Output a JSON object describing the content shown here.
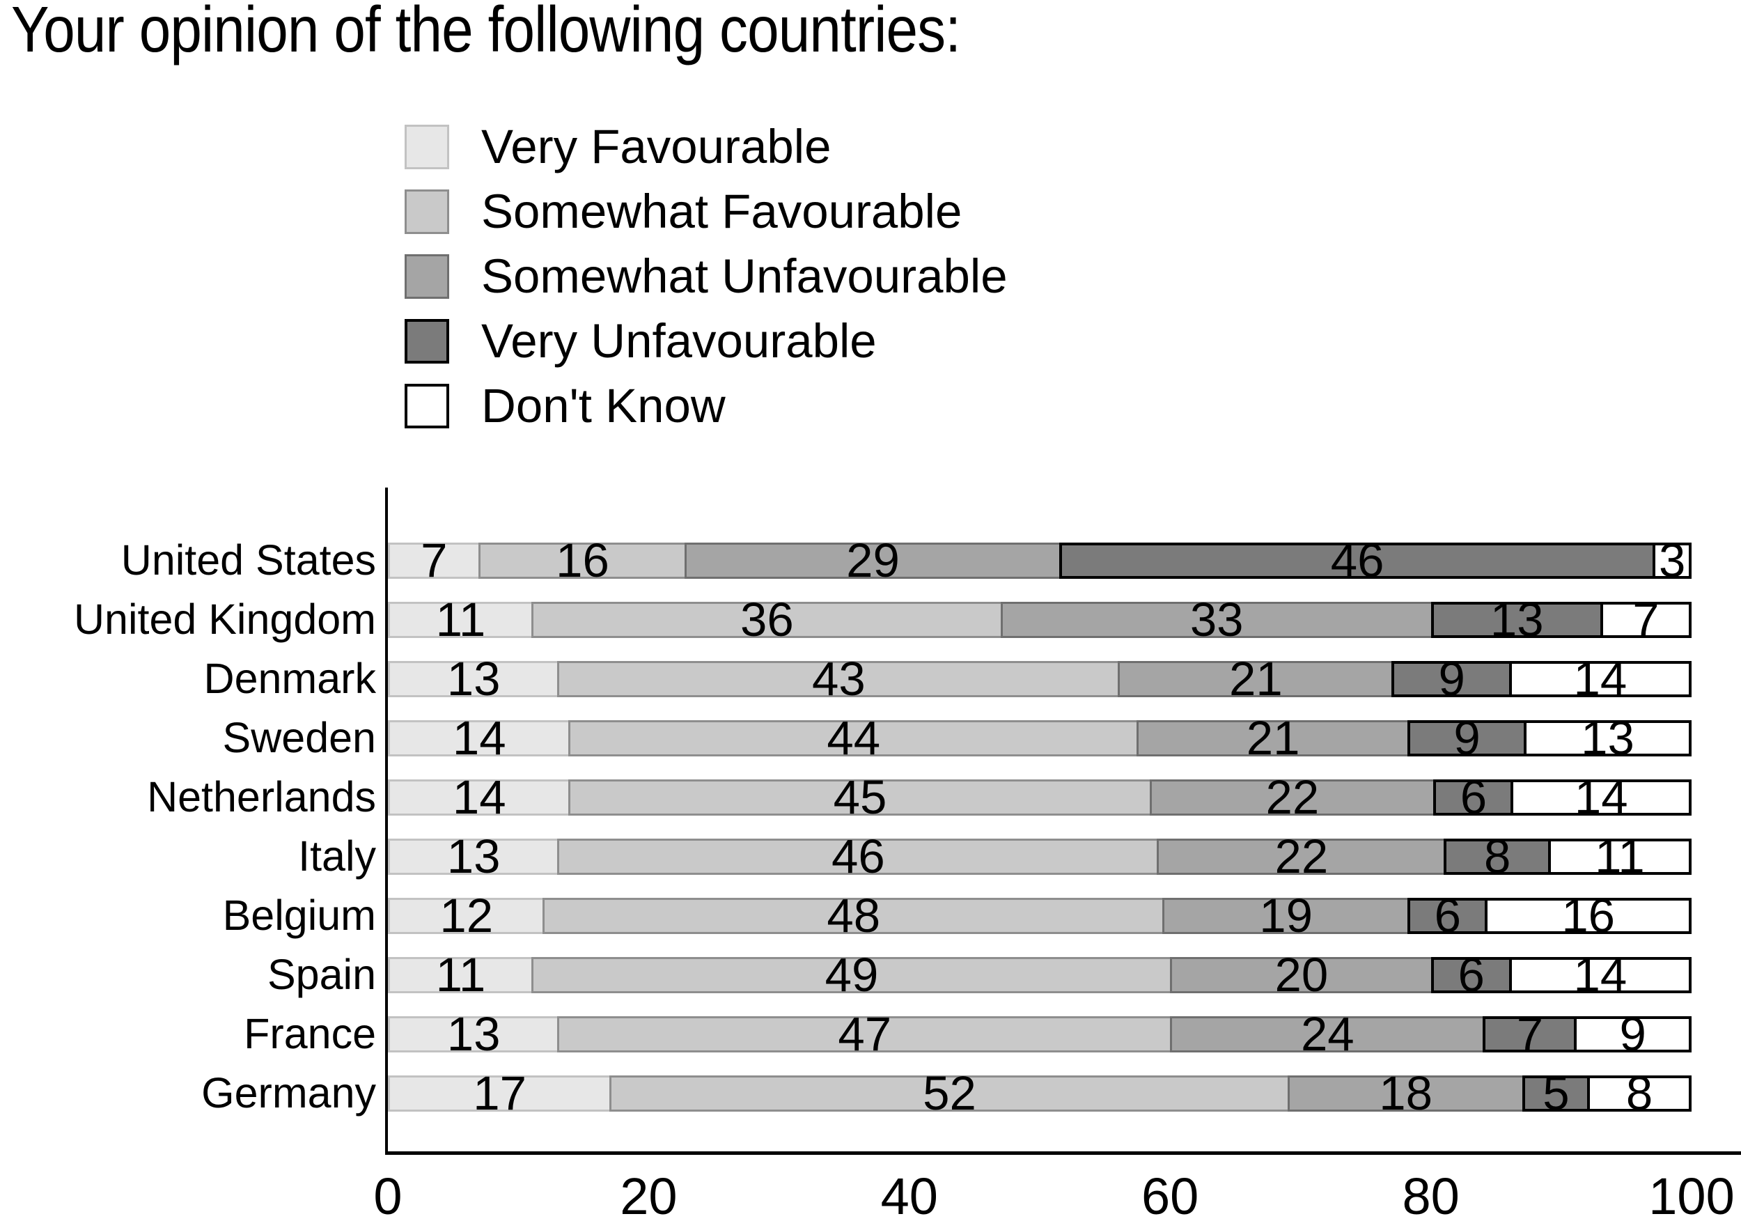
{
  "title": "Your opinion of the following countries:",
  "chart_data": {
    "type": "bar",
    "stacked": true,
    "orientation": "horizontal",
    "title": "Your opinion of the following countries:",
    "categories": [
      "United States",
      "United Kingdom",
      "Denmark",
      "Sweden",
      "Netherlands",
      "Italy",
      "Belgium",
      "Spain",
      "France",
      "Germany"
    ],
    "series": [
      {
        "name": "Very Favourable",
        "color": "#e7e7e7",
        "border_color": "#c2c2c2",
        "border_px": 3,
        "values": [
          7,
          11,
          13,
          14,
          14,
          13,
          12,
          11,
          13,
          17
        ]
      },
      {
        "name": "Somewhat Favourable",
        "color": "#c9c9c9",
        "border_color": "#8e8e8e",
        "border_px": 3,
        "values": [
          16,
          36,
          43,
          44,
          45,
          46,
          48,
          49,
          47,
          52
        ]
      },
      {
        "name": "Somewhat Unfavourable",
        "color": "#a5a5a5",
        "border_color": "#6f6f6f",
        "border_px": 3,
        "values": [
          29,
          33,
          21,
          21,
          22,
          22,
          19,
          20,
          24,
          18
        ]
      },
      {
        "name": "Very Unfavourable",
        "color": "#7b7b7b",
        "border_color": "#000000",
        "border_px": 4,
        "values": [
          46,
          13,
          9,
          9,
          6,
          8,
          6,
          6,
          7,
          5
        ]
      },
      {
        "name": "Don't Know",
        "color": "#ffffff",
        "border_color": "#000000",
        "border_px": 4,
        "values": [
          3,
          7,
          14,
          13,
          14,
          11,
          16,
          14,
          9,
          8
        ]
      }
    ],
    "x_ticks": [
      0,
      20,
      40,
      60,
      80,
      100
    ],
    "xlim": [
      0,
      100
    ],
    "ylabel": "",
    "xlabel": "",
    "grid": false,
    "legend_position": "top-left-above-plot",
    "value_labels": "inside-center"
  }
}
